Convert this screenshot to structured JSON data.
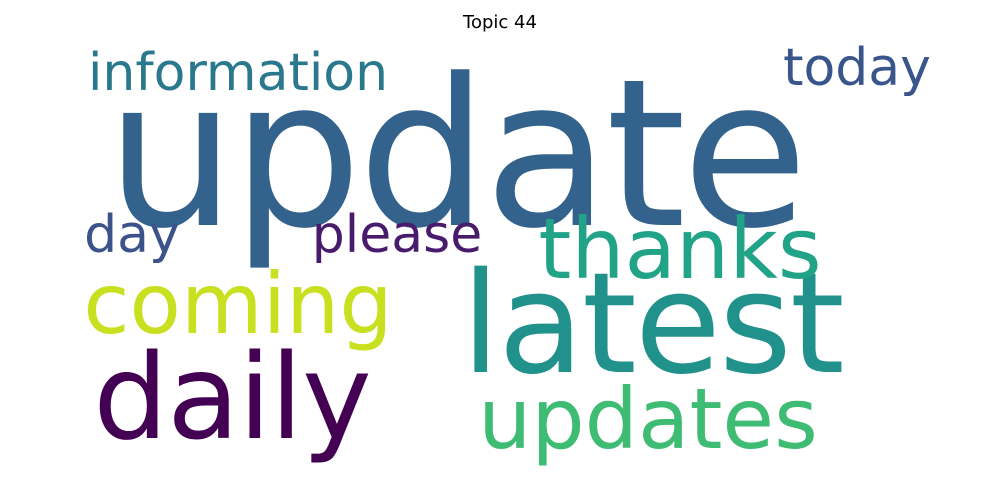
{
  "chart_data": {
    "type": "wordcloud",
    "title": "Topic 44",
    "words": [
      {
        "text": "update",
        "weight": 1.0,
        "color": "#33638d"
      },
      {
        "text": "latest",
        "weight": 0.69,
        "color": "#21918c"
      },
      {
        "text": "daily",
        "weight": 0.52,
        "color": "#440154"
      },
      {
        "text": "updates",
        "weight": 0.39,
        "color": "#3fbc73"
      },
      {
        "text": "thanks",
        "weight": 0.39,
        "color": "#20a386"
      },
      {
        "text": "coming",
        "weight": 0.39,
        "color": "#c8e020"
      },
      {
        "text": "today",
        "weight": 0.24,
        "color": "#39568c"
      },
      {
        "text": "information",
        "weight": 0.24,
        "color": "#2a788e"
      },
      {
        "text": "please",
        "weight": 0.24,
        "color": "#481b6d"
      },
      {
        "text": "day",
        "weight": 0.24,
        "color": "#3b528b"
      }
    ]
  }
}
